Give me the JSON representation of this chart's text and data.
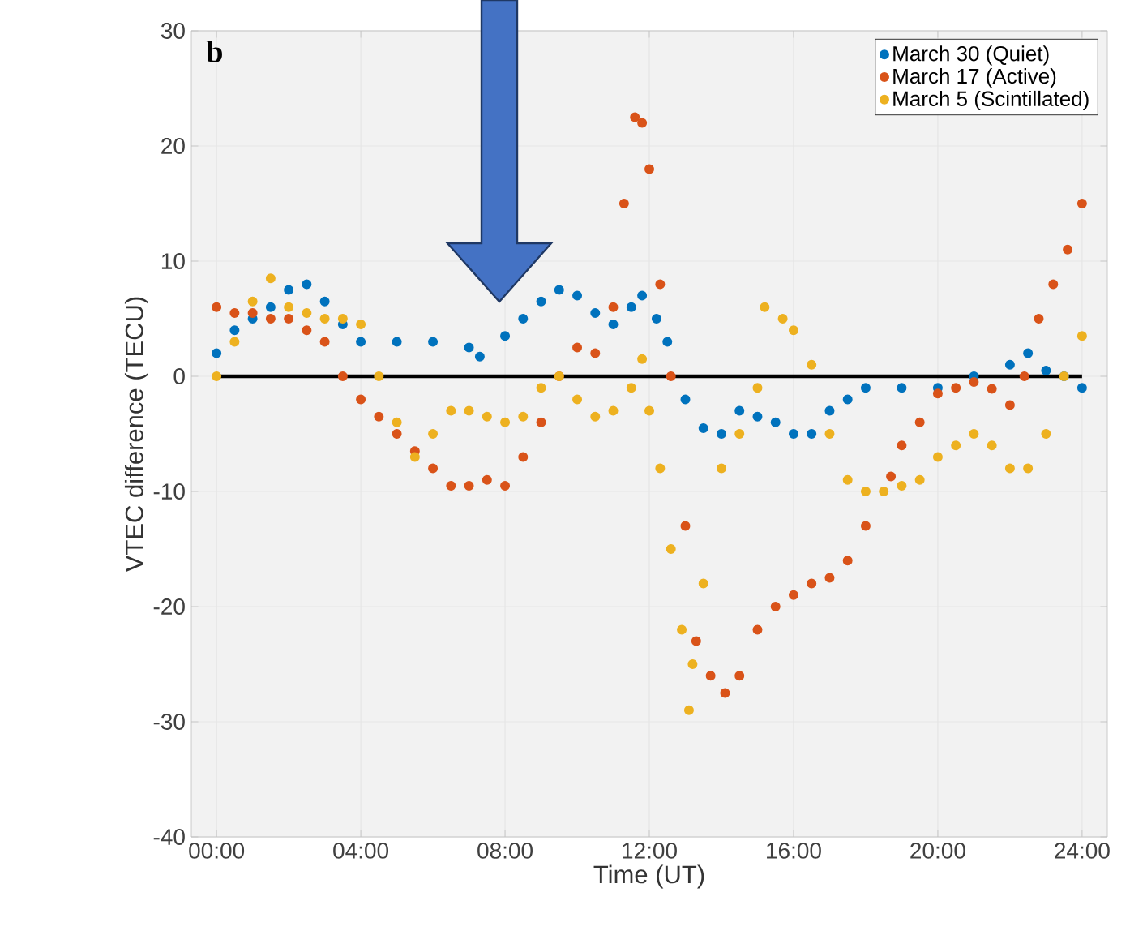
{
  "chart_data": {
    "type": "scatter",
    "xlabel": "Time (UT)",
    "ylabel": "VTEC difference (TECU)",
    "annotations": [
      "b"
    ],
    "xlim": [
      -0.7,
      24.7
    ],
    "ylim": [
      -40,
      30
    ],
    "xticks": [
      {
        "value": 0,
        "label": "00:00"
      },
      {
        "value": 4,
        "label": "04:00"
      },
      {
        "value": 8,
        "label": "08:00"
      },
      {
        "value": 12,
        "label": "12:00"
      },
      {
        "value": 16,
        "label": "16:00"
      },
      {
        "value": 20,
        "label": "20:00"
      },
      {
        "value": 24,
        "label": "24:00"
      }
    ],
    "yticks": [
      -40,
      -30,
      -20,
      -10,
      0,
      10,
      20,
      30
    ],
    "grid": true,
    "legend": "top right",
    "marker": "circle",
    "ref_lines": [
      {
        "axis": "y",
        "value": 0,
        "color": "#000000"
      }
    ],
    "series": [
      {
        "name": "March 30 (Quiet)",
        "color": "#0072bd",
        "x": [
          0,
          0.5,
          1,
          1.5,
          2,
          2.5,
          3,
          3.5,
          4,
          5,
          6,
          7,
          7.3,
          8,
          8.5,
          9,
          9.5,
          10,
          10.5,
          11,
          11.5,
          11.8,
          12.2,
          12.5,
          13,
          13.5,
          14,
          14.5,
          15,
          15.5,
          16,
          16.5,
          17,
          17.5,
          18,
          19,
          20,
          21,
          22,
          22.5,
          23,
          23.5,
          24
        ],
        "values": [
          2,
          4,
          5,
          6,
          7.5,
          8,
          6.5,
          4.5,
          3,
          3,
          3,
          2.5,
          1.7,
          3.5,
          5,
          6.5,
          7.5,
          7,
          5.5,
          4.5,
          6,
          7,
          5,
          3,
          -2,
          -4.5,
          -5,
          -3,
          -3.5,
          -4,
          -5,
          -5,
          -3,
          -2,
          -1,
          -1,
          -1,
          0,
          1,
          2,
          0.5,
          0,
          -1
        ]
      },
      {
        "name": "March 17 (Active)",
        "color": "#d95319",
        "x": [
          0,
          0.5,
          1,
          1.5,
          2,
          2.5,
          3,
          3.5,
          4,
          4.5,
          5,
          5.5,
          6,
          6.5,
          7,
          7.5,
          8,
          8.5,
          9,
          9.5,
          10,
          10.5,
          11,
          11.3,
          11.6,
          11.8,
          12,
          12.3,
          12.6,
          13,
          13.3,
          13.7,
          14.1,
          14.5,
          15,
          15.5,
          16,
          16.5,
          17,
          17.5,
          18,
          18.7,
          19,
          19.5,
          20,
          20.5,
          21,
          21.5,
          22,
          22.4,
          22.8,
          23.2,
          23.6,
          24
        ],
        "values": [
          6,
          5.5,
          5.5,
          5,
          5,
          4,
          3,
          0,
          -2,
          -3.5,
          -5,
          -6.5,
          -8,
          -9.5,
          -9.5,
          -9,
          -9.5,
          -7,
          -4,
          0,
          2.5,
          2,
          6,
          15,
          22.5,
          22,
          18,
          8,
          0,
          -13,
          -23,
          -26,
          -27.5,
          -26,
          -22,
          -20,
          -19,
          -18,
          -17.5,
          -16,
          -13,
          -8.7,
          -6,
          -4,
          -1.5,
          -1,
          -0.5,
          -1.1,
          -2.5,
          0,
          5,
          8,
          11,
          15
        ]
      },
      {
        "name": "March 5 (Scintillated)",
        "color": "#edb120",
        "x": [
          0,
          0.5,
          1,
          1.5,
          2,
          2.5,
          3,
          3.5,
          4,
          4.5,
          5,
          5.5,
          6,
          6.5,
          7,
          7.5,
          8,
          8.5,
          9,
          9.5,
          10,
          10.5,
          11,
          11.5,
          11.8,
          12,
          12.3,
          12.6,
          12.9,
          13.1,
          13.2,
          13.5,
          14,
          14.5,
          15,
          15.2,
          15.7,
          16,
          16.5,
          17,
          17.5,
          18,
          18.5,
          19,
          19.5,
          20,
          20.5,
          21,
          21.5,
          22,
          22.5,
          23,
          23.5,
          24
        ],
        "values": [
          0,
          3,
          6.5,
          8.5,
          6,
          5.5,
          5,
          5,
          4.5,
          0,
          -4,
          -7,
          -5,
          -3,
          -3,
          -3.5,
          -4,
          -3.5,
          -1,
          0,
          -2,
          -3.5,
          -3,
          -1,
          1.5,
          -3,
          -8,
          -15,
          -22,
          -29,
          -25,
          -18,
          -8,
          -5,
          -1,
          6,
          5,
          4,
          1,
          -5,
          -9,
          -10,
          -10,
          -9.5,
          -9,
          -7,
          -6,
          -5,
          -6,
          -8,
          -8,
          -5,
          0,
          3.5
        ]
      }
    ]
  }
}
